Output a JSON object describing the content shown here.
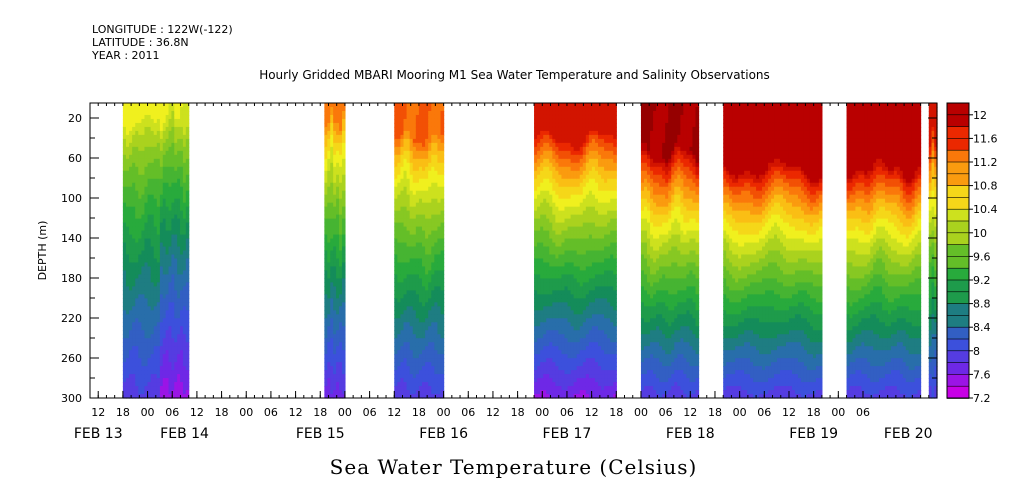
{
  "header": {
    "longitude": "LONGITUDE : 122W(-122)",
    "latitude": "LATITUDE : 36.8N",
    "year": "YEAR : 2011",
    "title": "Hourly Gridded MBARI Mooring M1 Sea Water Temperature and Salinity Observations"
  },
  "bottom_title": "Sea Water Temperature (Celsius)",
  "chart_data": {
    "type": "heatmap",
    "title": "Hourly Gridded MBARI Mooring M1 Sea Water Temperature and Salinity Observations",
    "xlabel": "",
    "ylabel": "DEPTH (m)",
    "colorbar_label": "Sea Water Temperature (Celsius)",
    "y_axis": {
      "ticks": [
        20,
        60,
        100,
        140,
        180,
        220,
        260,
        300
      ],
      "range": [
        300,
        5
      ],
      "inverted": true
    },
    "x_axis": {
      "start_hour_label": "12",
      "hour_ticks": [
        "12",
        "18",
        "00",
        "06",
        "12",
        "18",
        "00",
        "06",
        "12",
        "18",
        "00",
        "06",
        "12",
        "18",
        "00",
        "06",
        "12",
        "18",
        "00",
        "06",
        "12",
        "18",
        "00",
        "06",
        "12",
        "18",
        "00",
        "06",
        "12",
        "18",
        "00",
        "06"
      ],
      "date_labels": [
        {
          "label": "FEB 13",
          "hour": 12
        },
        {
          "label": "FEB 14",
          "hour": 33
        },
        {
          "label": "FEB 15",
          "hour": 66
        },
        {
          "label": "FEB 16",
          "hour": 96
        },
        {
          "label": "FEB 17",
          "hour": 126
        },
        {
          "label": "FEB 18",
          "hour": 156
        },
        {
          "label": "FEB 19",
          "hour": 186
        },
        {
          "label": "FEB 20",
          "hour": 209
        }
      ],
      "range_hours": [
        10,
        216
      ]
    },
    "colorbar": {
      "min": 7.2,
      "max": 12.2,
      "tick_labels": [
        "12",
        "11.6",
        "11.2",
        "10.8",
        "10.4",
        "10",
        "9.6",
        "9.2",
        "8.8",
        "8.4",
        "8",
        "7.6",
        "7.2"
      ],
      "tick_values": [
        12,
        11.6,
        11.2,
        10.8,
        10.4,
        10,
        9.6,
        9.2,
        8.8,
        8.4,
        8,
        7.6,
        7.2
      ]
    },
    "segments": [
      {
        "start": 18,
        "end": 30,
        "surface_temp": 10.4,
        "deep_temp": 7.8,
        "thermocline_depth": 20
      },
      {
        "start": 27,
        "end": 34,
        "surface_temp": 10.3,
        "deep_temp": 7.4,
        "thermocline_depth": 20
      },
      {
        "start": 67,
        "end": 72,
        "surface_temp": 11.2,
        "deep_temp": 7.6,
        "thermocline_depth": 20
      },
      {
        "start": 84,
        "end": 96,
        "surface_temp": 11.3,
        "deep_temp": 7.8,
        "thermocline_depth": 40
      },
      {
        "start": 118,
        "end": 138,
        "surface_temp": 11.8,
        "deep_temp": 7.5,
        "thermocline_depth": 40
      },
      {
        "start": 144,
        "end": 158,
        "surface_temp": 12.1,
        "deep_temp": 7.8,
        "thermocline_depth": 55
      },
      {
        "start": 164,
        "end": 188,
        "surface_temp": 12.0,
        "deep_temp": 7.8,
        "thermocline_depth": 70
      },
      {
        "start": 194,
        "end": 212,
        "surface_temp": 12.0,
        "deep_temp": 7.8,
        "thermocline_depth": 70
      },
      {
        "start": 214,
        "end": 216,
        "surface_temp": 11.8,
        "deep_temp": 7.8,
        "thermocline_depth": 40
      }
    ],
    "grid": false,
    "legend_placement": "right"
  }
}
